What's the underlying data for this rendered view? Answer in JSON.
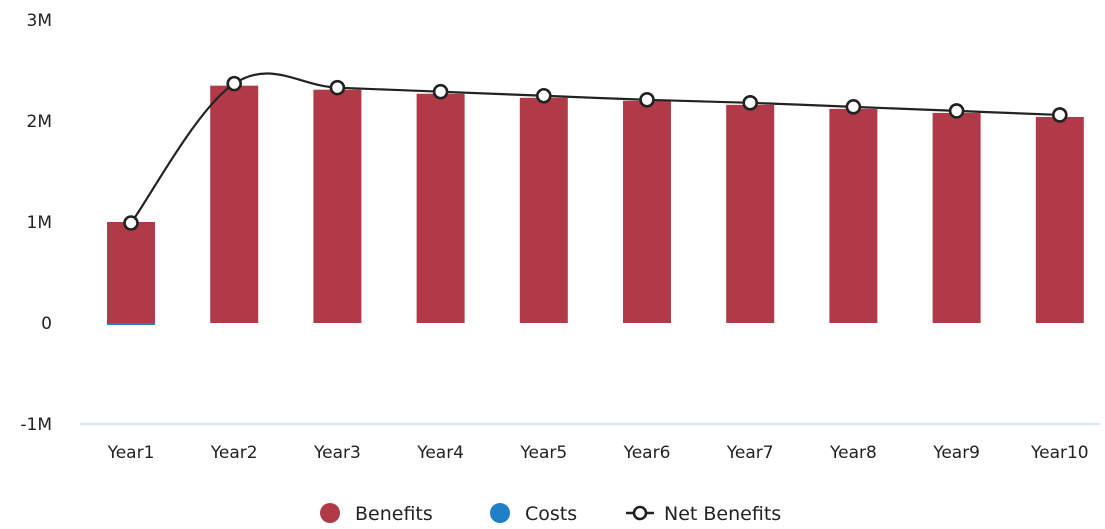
{
  "chart_data": {
    "type": "bar",
    "categories": [
      "Year1",
      "Year2",
      "Year3",
      "Year4",
      "Year5",
      "Year6",
      "Year7",
      "Year8",
      "Year9",
      "Year10"
    ],
    "series": [
      {
        "name": "Benefits",
        "kind": "bar",
        "color": "#b03a48",
        "values": [
          1000000,
          2350000,
          2310000,
          2270000,
          2230000,
          2200000,
          2160000,
          2120000,
          2080000,
          2040000
        ]
      },
      {
        "name": "Costs",
        "kind": "bar",
        "color": "#1f7fc7",
        "values": [
          -15000,
          0,
          0,
          0,
          0,
          0,
          0,
          0,
          0,
          0
        ]
      },
      {
        "name": "Net Benefits",
        "kind": "line",
        "color": "#222222",
        "values": [
          990000,
          2370000,
          2330000,
          2290000,
          2250000,
          2210000,
          2180000,
          2140000,
          2100000,
          2060000
        ]
      }
    ],
    "yticks": [
      {
        "value": 3000000,
        "label": "3M"
      },
      {
        "value": 2000000,
        "label": "2M"
      },
      {
        "value": 1000000,
        "label": "1M"
      },
      {
        "value": 0,
        "label": "0"
      },
      {
        "value": -1000000,
        "label": "-1M"
      }
    ],
    "ylim": [
      -1000000,
      3000000
    ],
    "grid": false,
    "legend_position": "bottom-center",
    "title": "",
    "xlabel": "",
    "ylabel": ""
  }
}
